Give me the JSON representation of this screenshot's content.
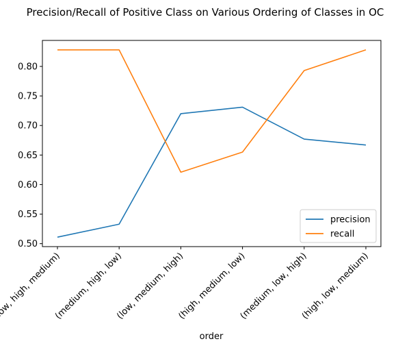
{
  "chart_data": {
    "type": "line",
    "title": "Precision/Recall of Positive Class on Various Ordering of Classes in OC",
    "xlabel": "order",
    "ylabel": "",
    "categories": [
      "(low, high, medium)",
      "(medium, high, low)",
      "(low, medium, high)",
      "(high, medium, low)",
      "(medium, low, high)",
      "(high, low, medium)"
    ],
    "series": [
      {
        "name": "precision",
        "color": "#1f77b4",
        "values": [
          0.511,
          0.533,
          0.72,
          0.731,
          0.677,
          0.667
        ]
      },
      {
        "name": "recall",
        "color": "#ff7f0e",
        "values": [
          0.828,
          0.828,
          0.621,
          0.655,
          0.793,
          0.828
        ]
      }
    ],
    "ylim": [
      0.495,
      0.844
    ],
    "yticks": [
      "0.50",
      "0.55",
      "0.60",
      "0.65",
      "0.70",
      "0.75",
      "0.80"
    ],
    "grid": false,
    "legend_position": "lower-right"
  }
}
